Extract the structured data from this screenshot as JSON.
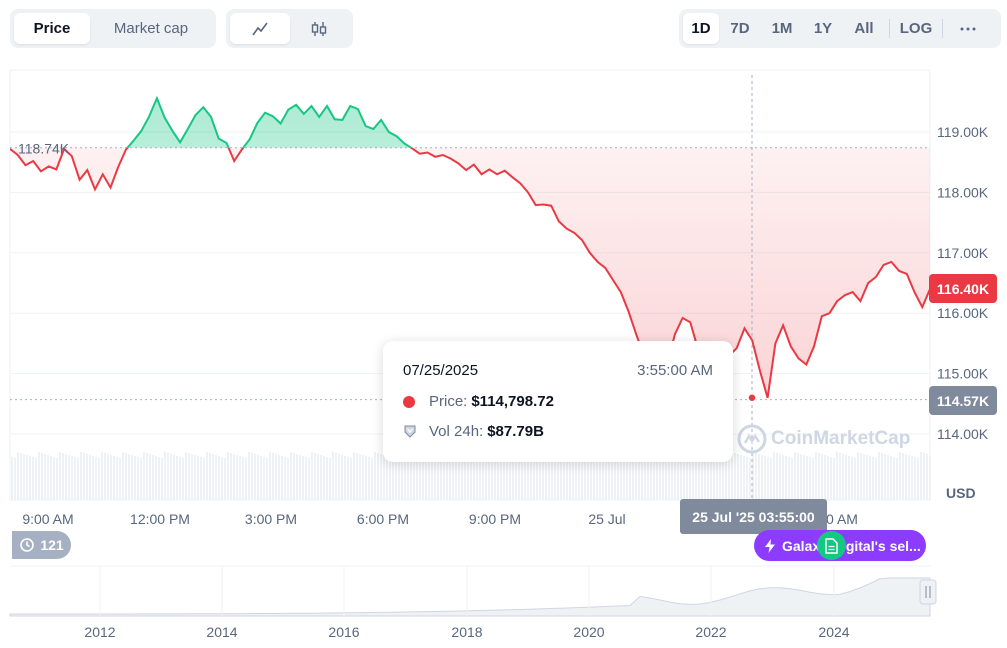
{
  "toolbar": {
    "metric_tabs": [
      {
        "label": "Price",
        "active": true
      },
      {
        "label": "Market cap",
        "active": false
      }
    ],
    "chart_type_icons": [
      {
        "icon": "line-chart-icon",
        "active": true
      },
      {
        "icon": "candlestick-icon",
        "active": false
      }
    ],
    "ranges": [
      {
        "label": "1D",
        "active": true
      },
      {
        "label": "7D",
        "active": false
      },
      {
        "label": "1M",
        "active": false
      },
      {
        "label": "1Y",
        "active": false
      },
      {
        "label": "All",
        "active": false
      },
      {
        "label": "LOG",
        "active": false
      }
    ],
    "more_icon": "more-horizontal-icon"
  },
  "chart_data": {
    "type": "line",
    "y_axis": {
      "ticks": [
        "119.00K",
        "118.00K",
        "117.00K",
        "116.00K",
        "115.00K",
        "114.00K"
      ],
      "unit_label": "USD",
      "range": [
        113700,
        120000
      ]
    },
    "x_axis": {
      "ticks": [
        "9:00 AM",
        "12:00 PM",
        "3:00 PM",
        "6:00 PM",
        "9:00 PM",
        "25 Jul",
        "0 AM"
      ]
    },
    "reference_price": "118.74K",
    "reference_value": 118740,
    "current_price": "116.40K",
    "current_value": 116400,
    "low_marker": "114.57K",
    "low_value": 114570,
    "crosshair_time_label": "25 Jul '25 03:55:00",
    "series": [
      {
        "values": [
          118720,
          118620,
          118450,
          118520,
          118350,
          118430,
          118380,
          118720,
          118600,
          118210,
          118370,
          118050,
          118300,
          118080,
          118420,
          118710,
          118860,
          119020,
          119260,
          119560,
          119240,
          119020,
          118830,
          119050,
          119280,
          119410,
          119250,
          118890,
          118820,
          118520,
          118710,
          118880,
          119150,
          119320,
          119260,
          119140,
          119370,
          119450,
          119300,
          119430,
          119250,
          119430,
          119210,
          119200,
          119430,
          119380,
          119100,
          119050,
          119200,
          119000,
          118930,
          118810,
          118730,
          118640,
          118660,
          118590,
          118620,
          118560,
          118480,
          118370,
          118460,
          118300,
          118380,
          118300,
          118360,
          118250,
          118150,
          118000,
          117790,
          117800,
          117780,
          117520,
          117400,
          117330,
          117210,
          117000,
          116850,
          116750,
          116550,
          116350,
          116030,
          115650,
          115300,
          115000,
          114950,
          115150,
          115650,
          115920,
          115850,
          115400,
          115350,
          115250,
          115100,
          115300,
          115420,
          115750,
          115550,
          115050,
          114600,
          115500,
          115800,
          115450,
          115250,
          115150,
          115450,
          115950,
          116000,
          116200,
          116300,
          116350,
          116200,
          116500,
          116600,
          116800,
          116850,
          116700,
          116650,
          116350,
          116100,
          116400
        ]
      }
    ],
    "volume_bars": true
  },
  "tooltip": {
    "date": "07/25/2025",
    "time": "3:55:00 AM",
    "price_label": "Price:",
    "price_value": "$114,798.72",
    "volume_label": "Vol 24h:",
    "volume_value": "$87.79B",
    "price_dot_color": "#ea3943",
    "volume_icon": "shield-icon"
  },
  "watermark": "CoinMarketCap",
  "history_badge": {
    "icon": "history-icon",
    "count": "121"
  },
  "news_badge": {
    "icon": "lightning-icon",
    "label": "Galaxy Digital's sel...",
    "doc_icon": "document-icon"
  },
  "navigator": {
    "year_ticks": [
      "2012",
      "2014",
      "2016",
      "2018",
      "2020",
      "2022",
      "2024"
    ],
    "handle_icon": "drag-handle-icon"
  },
  "colors": {
    "up": "#16c784",
    "down": "#ea3943",
    "badge_gray": "#808a9d",
    "news_purple": "#8c3bff"
  }
}
